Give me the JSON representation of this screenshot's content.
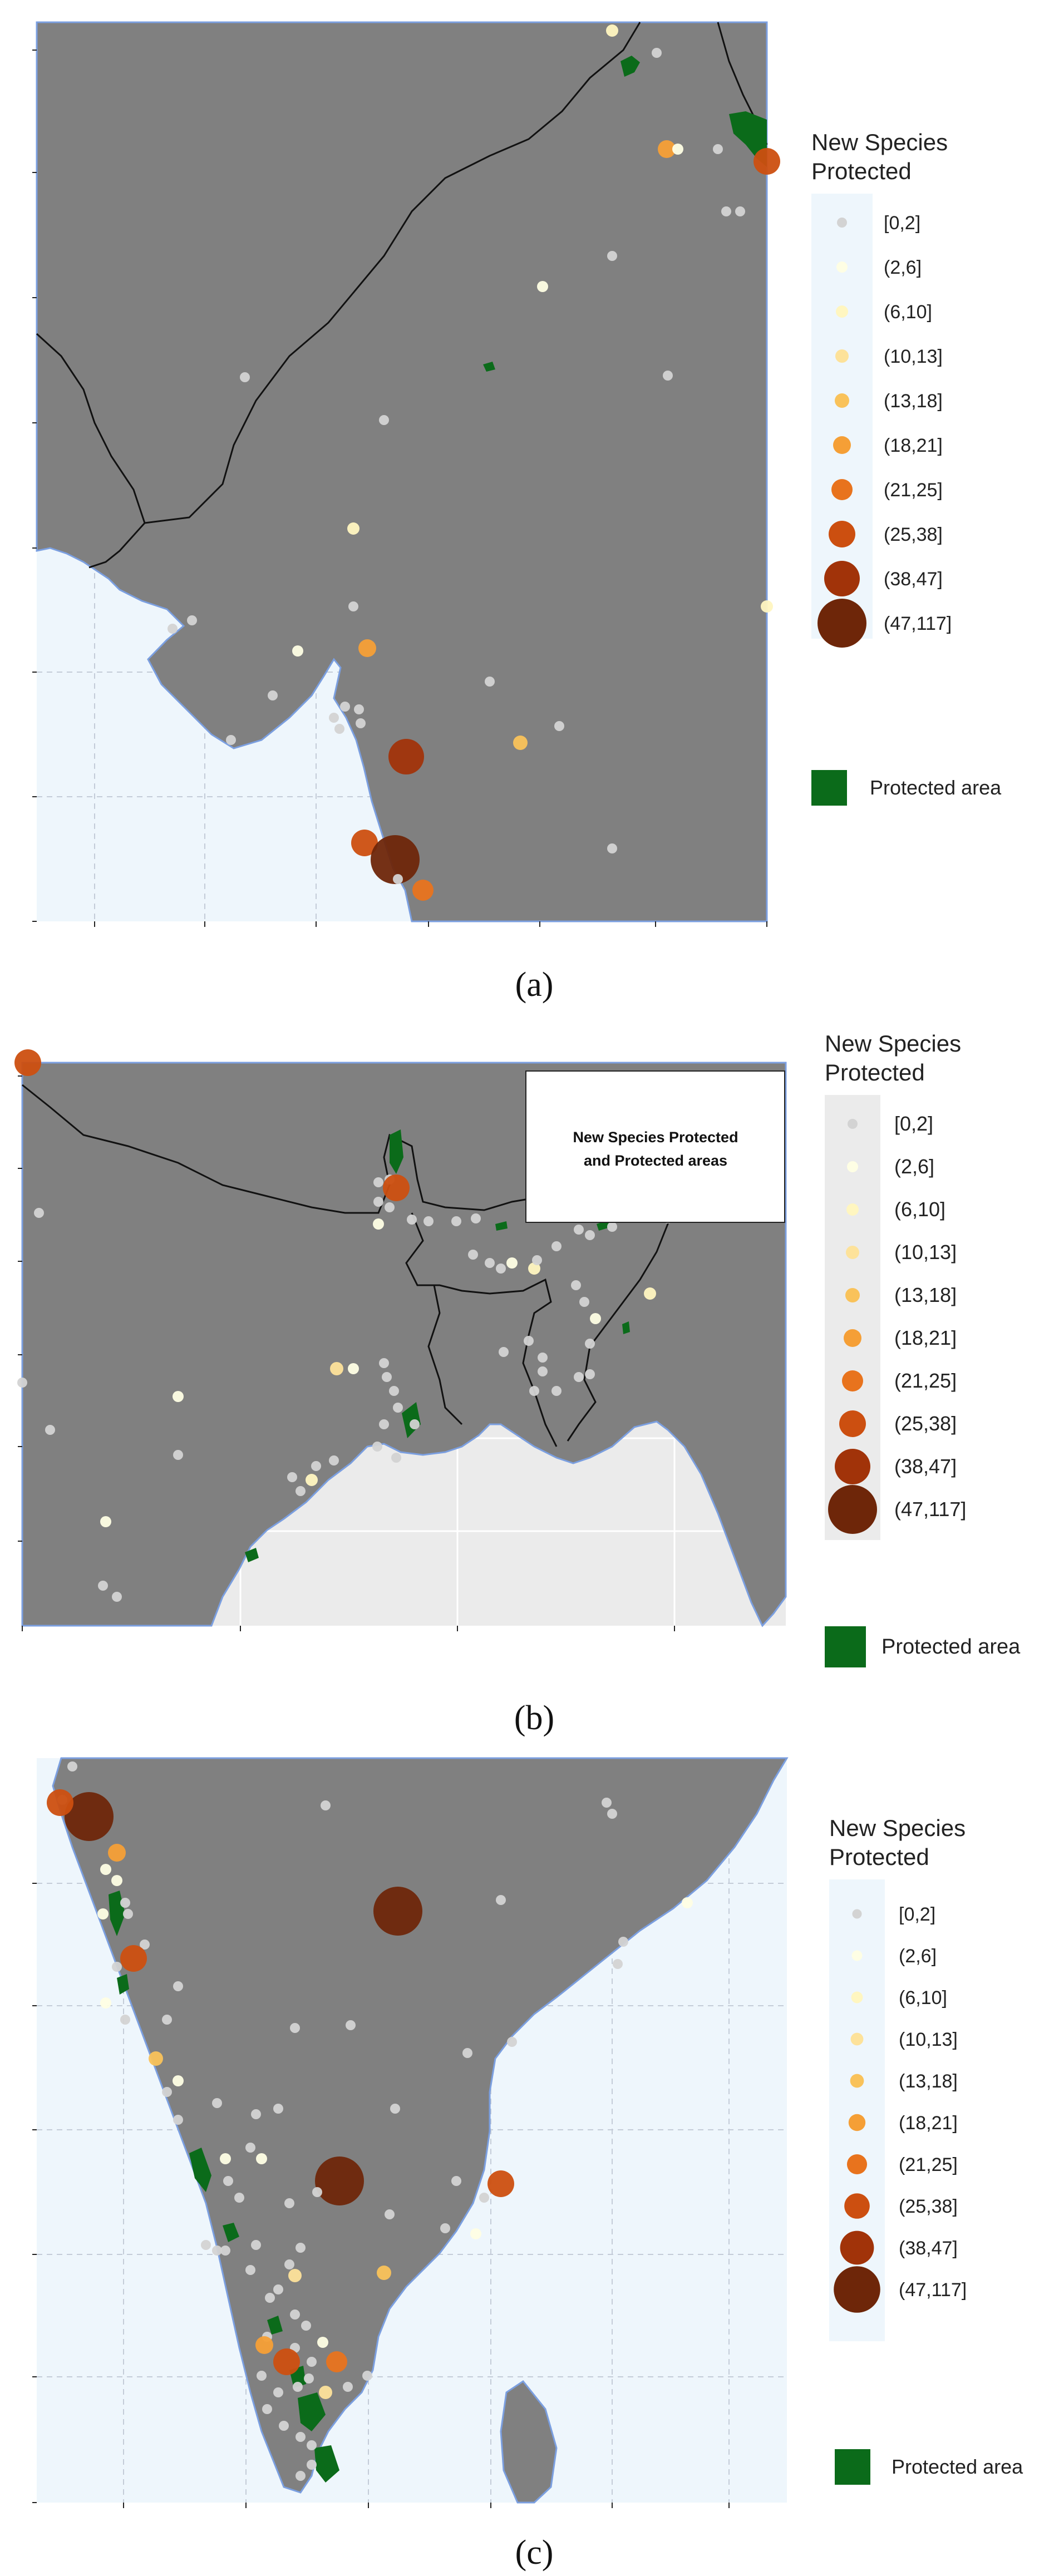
{
  "legend": {
    "title_line1": "New Species",
    "title_line2": "Protected",
    "categories": [
      {
        "label": "[0,2]",
        "color": "#d3d3d3"
      },
      {
        "label": "(2,6]",
        "color": "#fefee4"
      },
      {
        "label": "(6,10]",
        "color": "#fff6c0"
      },
      {
        "label": "(10,13]",
        "color": "#fde29a"
      },
      {
        "label": "(13,18]",
        "color": "#f9c25a"
      },
      {
        "label": "(18,21]",
        "color": "#f59f36"
      },
      {
        "label": "(21,25]",
        "color": "#e8731d"
      },
      {
        "label": "(25,38]",
        "color": "#cc4f10"
      },
      {
        "label": "(38,47]",
        "color": "#a13309"
      },
      {
        "label": "(47,117]",
        "color": "#6e2609"
      }
    ],
    "protected_area_label": "Protected area",
    "protected_area_color": "#0b6b1a"
  },
  "colors": {
    "land": "#808080",
    "sea_a": "#eef6fc",
    "sea_b": "#ebebeb",
    "coast": "#7b9fe0",
    "border": "#111111",
    "grid": "#c4ccd8"
  },
  "panels": [
    {
      "label": "(a)"
    },
    {
      "label": "(b)",
      "inset_text_line1": "New Species Protected",
      "inset_text_line2": "and Protected areas"
    },
    {
      "label": "(c)"
    }
  ]
}
